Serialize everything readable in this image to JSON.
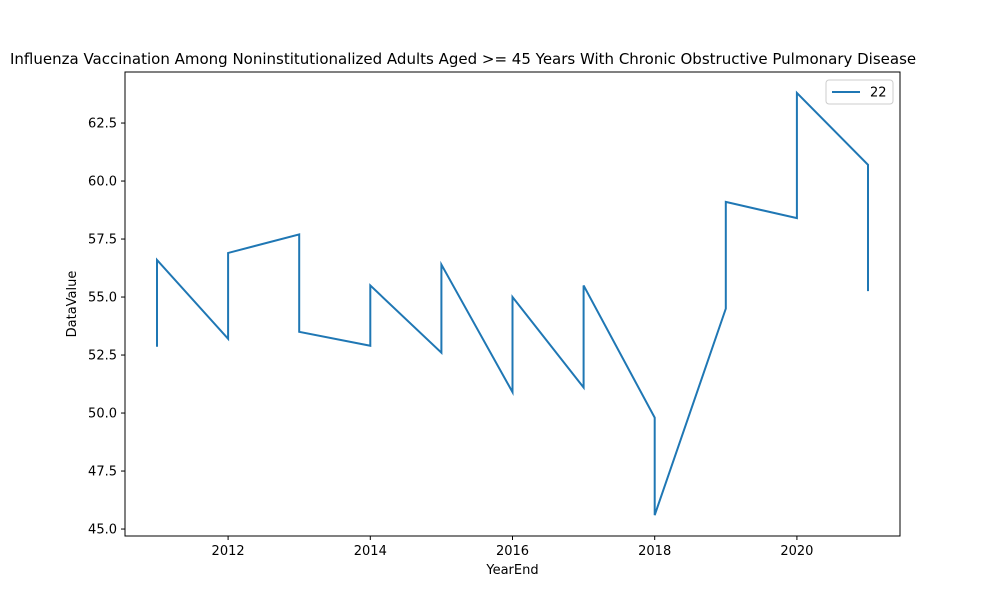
{
  "chart_data": {
    "type": "line",
    "title": "Influenza Vaccination Among Noninstitutionalized Adults Aged >= 45 Years With Chronic Obstructive Pulmonary Disease",
    "xlabel": "YearEnd",
    "ylabel": "DataValue",
    "xlim": [
      2010.55,
      2021.45
    ],
    "ylim": [
      44.7,
      64.7
    ],
    "xticks": [
      2012,
      2014,
      2016,
      2018,
      2020
    ],
    "yticks": [
      45.0,
      47.5,
      50.0,
      52.5,
      55.0,
      57.5,
      60.0,
      62.5
    ],
    "grid": false,
    "legend_position": "upper right",
    "series": [
      {
        "name": "22",
        "color": "#1f77b4",
        "x": [
          2011,
          2011,
          2012,
          2012,
          2013,
          2013,
          2014,
          2014,
          2015,
          2015,
          2016,
          2016,
          2017,
          2017,
          2018,
          2018,
          2019,
          2019,
          2020,
          2020,
          2021,
          2021
        ],
        "y": [
          52.9,
          56.6,
          53.2,
          56.9,
          57.7,
          53.5,
          52.9,
          55.5,
          52.6,
          56.4,
          50.9,
          55.0,
          51.1,
          55.5,
          49.8,
          45.6,
          54.5,
          59.1,
          58.4,
          63.8,
          60.7,
          55.3
        ]
      }
    ]
  }
}
